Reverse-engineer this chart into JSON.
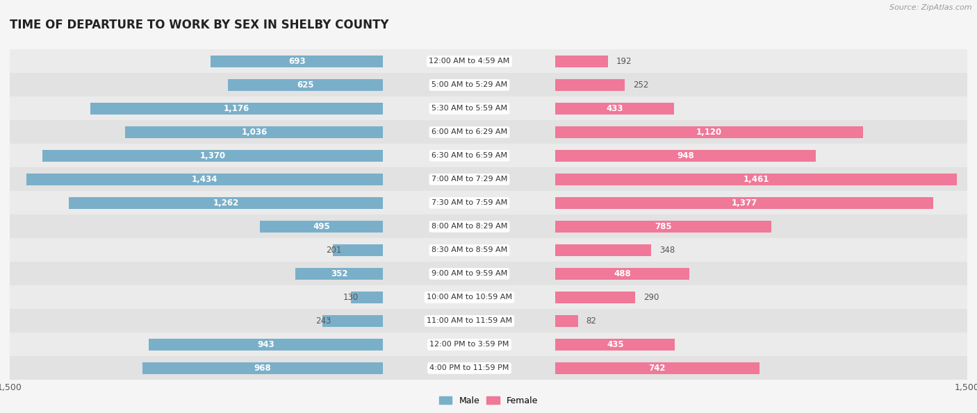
{
  "title": "TIME OF DEPARTURE TO WORK BY SEX IN SHELBY COUNTY",
  "source": "Source: ZipAtlas.com",
  "categories": [
    "12:00 AM to 4:59 AM",
    "5:00 AM to 5:29 AM",
    "5:30 AM to 5:59 AM",
    "6:00 AM to 6:29 AM",
    "6:30 AM to 6:59 AM",
    "7:00 AM to 7:29 AM",
    "7:30 AM to 7:59 AM",
    "8:00 AM to 8:29 AM",
    "8:30 AM to 8:59 AM",
    "9:00 AM to 9:59 AM",
    "10:00 AM to 10:59 AM",
    "11:00 AM to 11:59 AM",
    "12:00 PM to 3:59 PM",
    "4:00 PM to 11:59 PM"
  ],
  "male": [
    693,
    625,
    1176,
    1036,
    1370,
    1434,
    1262,
    495,
    201,
    352,
    130,
    243,
    943,
    968
  ],
  "female": [
    192,
    252,
    433,
    1120,
    948,
    1461,
    1377,
    785,
    348,
    488,
    290,
    82,
    435,
    742
  ],
  "male_color_dark": "#6BA3C8",
  "male_color_light": "#9BBFDA",
  "female_color_dark": "#F06080",
  "female_color_light": "#F4A0B0",
  "male_color": "#7aafc9",
  "female_color": "#f07898",
  "bg_color": "#f5f5f5",
  "row_colors": [
    "#ebebeb",
    "#e2e2e2"
  ],
  "label_bg": "#ffffff",
  "max_val": 1500,
  "bar_height": 0.52,
  "inside_threshold": 350,
  "label_fontsize": 8.5,
  "cat_fontsize": 8.0,
  "title_fontsize": 12,
  "source_fontsize": 8,
  "legend_male": "Male",
  "legend_female": "Female"
}
